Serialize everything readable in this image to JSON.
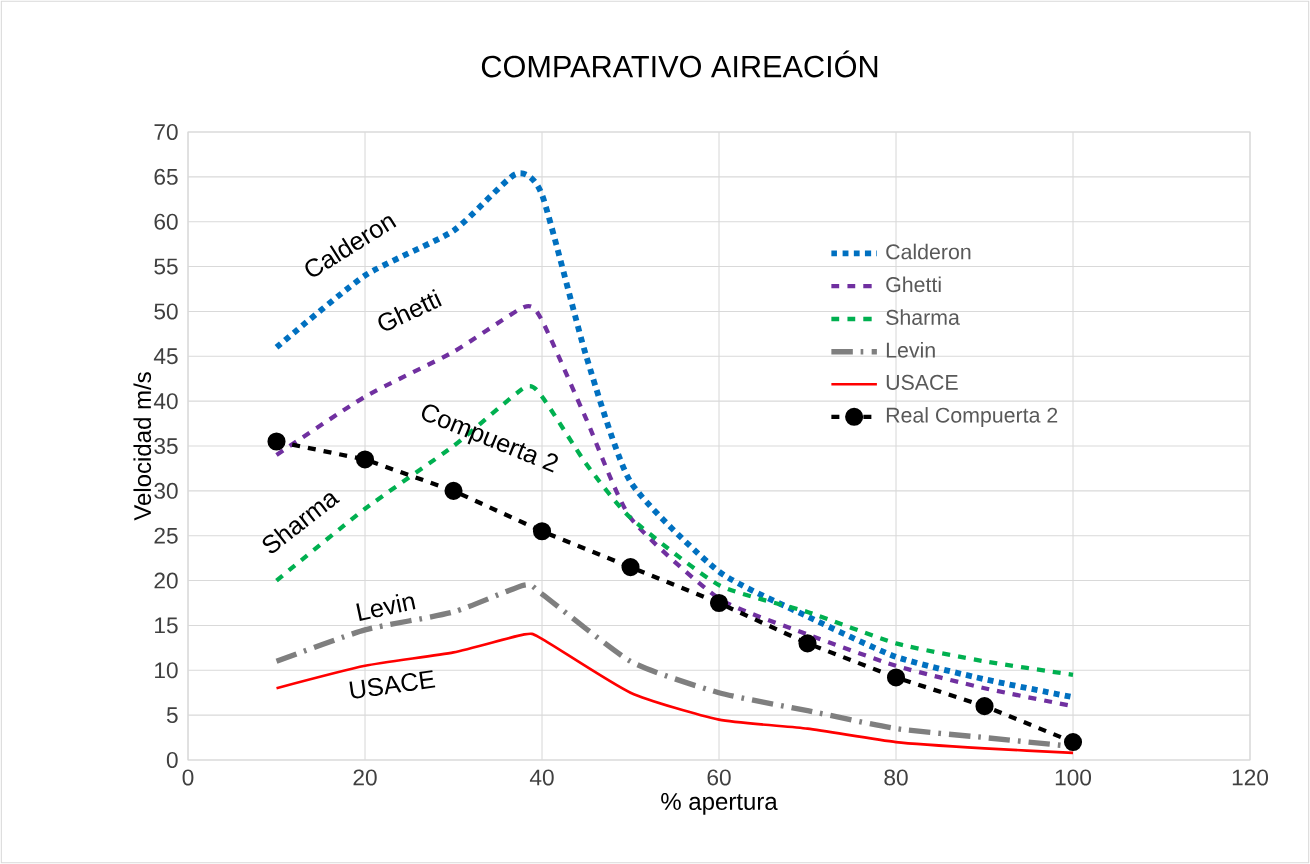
{
  "chart_data": {
    "type": "line",
    "title": "COMPARATIVO AIREACIÓN",
    "xlabel": "% apertura",
    "ylabel": "Velocidad m/s",
    "xlim": [
      0,
      120
    ],
    "xticks": [
      0,
      20,
      40,
      60,
      80,
      100,
      120
    ],
    "ylim": [
      0,
      70
    ],
    "yticks": [
      0,
      5,
      10,
      15,
      20,
      25,
      30,
      35,
      40,
      45,
      50,
      55,
      60,
      65,
      70
    ],
    "grid": true,
    "legend": "right",
    "series": [
      {
        "name": "Calderon",
        "color": "#0070c0",
        "line_style": "dotted",
        "x": [
          10,
          20,
          30,
          37,
          40,
          45,
          50,
          60,
          70,
          80,
          90,
          100
        ],
        "values": [
          46,
          54,
          59,
          65.3,
          63,
          45,
          31,
          21,
          16,
          11.5,
          9,
          7
        ]
      },
      {
        "name": "Ghetti",
        "color": "#7030a0",
        "line_style": "dashed",
        "x": [
          10,
          20,
          30,
          38,
          40,
          45,
          50,
          60,
          70,
          80,
          90,
          100
        ],
        "values": [
          34,
          40.5,
          45.5,
          50.5,
          49,
          38,
          27,
          18,
          14,
          10.5,
          8,
          6
        ]
      },
      {
        "name": "Sharma",
        "color": "#00b050",
        "line_style": "dashed",
        "x": [
          10,
          20,
          30,
          38,
          40,
          45,
          50,
          60,
          70,
          80,
          90,
          100
        ],
        "values": [
          20,
          28,
          35,
          41.5,
          40.5,
          33,
          27,
          19.5,
          16.5,
          13,
          11,
          9.5
        ]
      },
      {
        "name": "Levin",
        "color": "#7f7f7f",
        "line_style": "dashdot",
        "x": [
          10,
          20,
          30,
          38,
          40,
          50,
          60,
          70,
          80,
          90,
          100
        ],
        "values": [
          11,
          14.5,
          16.5,
          19.5,
          18.5,
          11,
          7.5,
          5.5,
          3.5,
          2.5,
          1.5
        ]
      },
      {
        "name": "USACE",
        "color": "#ff0000",
        "line_style": "solid",
        "x": [
          10,
          20,
          30,
          38,
          40,
          50,
          60,
          70,
          80,
          90,
          100
        ],
        "values": [
          8,
          10.5,
          12,
          14,
          13.5,
          7.5,
          4.5,
          3.5,
          2,
          1.3,
          0.8
        ]
      },
      {
        "name": "Real Compuerta 2",
        "color": "#000000",
        "line_style": "dashed",
        "marker": "circle",
        "x": [
          10,
          20,
          30,
          40,
          50,
          60,
          70,
          80,
          90,
          100
        ],
        "values": [
          35.5,
          33.5,
          30,
          25.5,
          21.5,
          17.5,
          13,
          9.2,
          6,
          2
        ]
      }
    ],
    "annotations": [
      "Calderon",
      "Ghetti",
      "Sharma",
      "Compuerta 2",
      "Levin",
      "USACE"
    ]
  }
}
